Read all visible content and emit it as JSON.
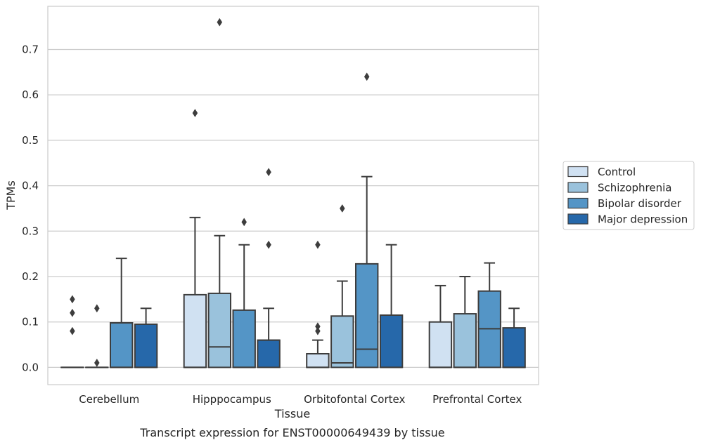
{
  "chart_data": {
    "type": "boxplot",
    "caption": "Transcript expression for ENST00000649439 by tissue",
    "xlabel": "Tissue",
    "ylabel": "TPMs",
    "ylim": [
      -0.038,
      0.795
    ],
    "yticks": [
      "0.0",
      "0.1",
      "0.2",
      "0.3",
      "0.4",
      "0.5",
      "0.6",
      "0.7"
    ],
    "grid": "horizontal",
    "legend_position": "right",
    "categories": [
      "Cerebellum",
      "Hipppocampus",
      "Orbitofontal Cortex",
      "Prefrontal Cortex"
    ],
    "series": [
      {
        "name": "Control",
        "color": "#d0e1f2",
        "boxes": [
          {
            "q1": 0.0,
            "median": 0.0,
            "q3": 0.0,
            "whisker_low": 0.0,
            "whisker_high": 0.0,
            "outliers": [
              0.08,
              0.12,
              0.15
            ]
          },
          {
            "q1": 0.0,
            "median": 0.0,
            "q3": 0.16,
            "whisker_low": 0.0,
            "whisker_high": 0.33,
            "outliers": [
              0.56
            ]
          },
          {
            "q1": 0.0,
            "median": 0.0,
            "q3": 0.03,
            "whisker_low": 0.0,
            "whisker_high": 0.06,
            "outliers": [
              0.08,
              0.09,
              0.27
            ]
          },
          {
            "q1": 0.0,
            "median": 0.0,
            "q3": 0.1,
            "whisker_low": 0.0,
            "whisker_high": 0.18,
            "outliers": []
          }
        ]
      },
      {
        "name": "Schizophrenia",
        "color": "#9ac2dc",
        "boxes": [
          {
            "q1": 0.0,
            "median": 0.0,
            "q3": 0.0,
            "whisker_low": 0.0,
            "whisker_high": 0.0,
            "outliers": [
              0.01,
              0.13
            ]
          },
          {
            "q1": 0.0,
            "median": 0.045,
            "q3": 0.163,
            "whisker_low": 0.0,
            "whisker_high": 0.29,
            "outliers": [
              0.76
            ]
          },
          {
            "q1": 0.0,
            "median": 0.01,
            "q3": 0.113,
            "whisker_low": 0.0,
            "whisker_high": 0.19,
            "outliers": [
              0.35
            ]
          },
          {
            "q1": 0.0,
            "median": 0.0,
            "q3": 0.118,
            "whisker_low": 0.0,
            "whisker_high": 0.2,
            "outliers": []
          }
        ]
      },
      {
        "name": "Bipolar disorder",
        "color": "#5495c6",
        "boxes": [
          {
            "q1": 0.0,
            "median": 0.0,
            "q3": 0.098,
            "whisker_low": 0.0,
            "whisker_high": 0.24,
            "outliers": []
          },
          {
            "q1": 0.0,
            "median": 0.0,
            "q3": 0.126,
            "whisker_low": 0.0,
            "whisker_high": 0.27,
            "outliers": [
              0.32
            ]
          },
          {
            "q1": 0.0,
            "median": 0.04,
            "q3": 0.228,
            "whisker_low": 0.0,
            "whisker_high": 0.42,
            "outliers": [
              0.64
            ]
          },
          {
            "q1": 0.0,
            "median": 0.085,
            "q3": 0.168,
            "whisker_low": 0.0,
            "whisker_high": 0.23,
            "outliers": []
          }
        ]
      },
      {
        "name": "Major depression",
        "color": "#2668aa",
        "boxes": [
          {
            "q1": 0.0,
            "median": 0.0,
            "q3": 0.095,
            "whisker_low": 0.0,
            "whisker_high": 0.13,
            "outliers": []
          },
          {
            "q1": 0.0,
            "median": 0.06,
            "q3": 0.06,
            "whisker_low": 0.0,
            "whisker_high": 0.13,
            "outliers": [
              0.27,
              0.43
            ]
          },
          {
            "q1": 0.0,
            "median": 0.0,
            "q3": 0.115,
            "whisker_low": 0.0,
            "whisker_high": 0.27,
            "outliers": []
          },
          {
            "q1": 0.0,
            "median": 0.0,
            "q3": 0.087,
            "whisker_low": 0.0,
            "whisker_high": 0.13,
            "outliers": []
          }
        ]
      }
    ]
  }
}
